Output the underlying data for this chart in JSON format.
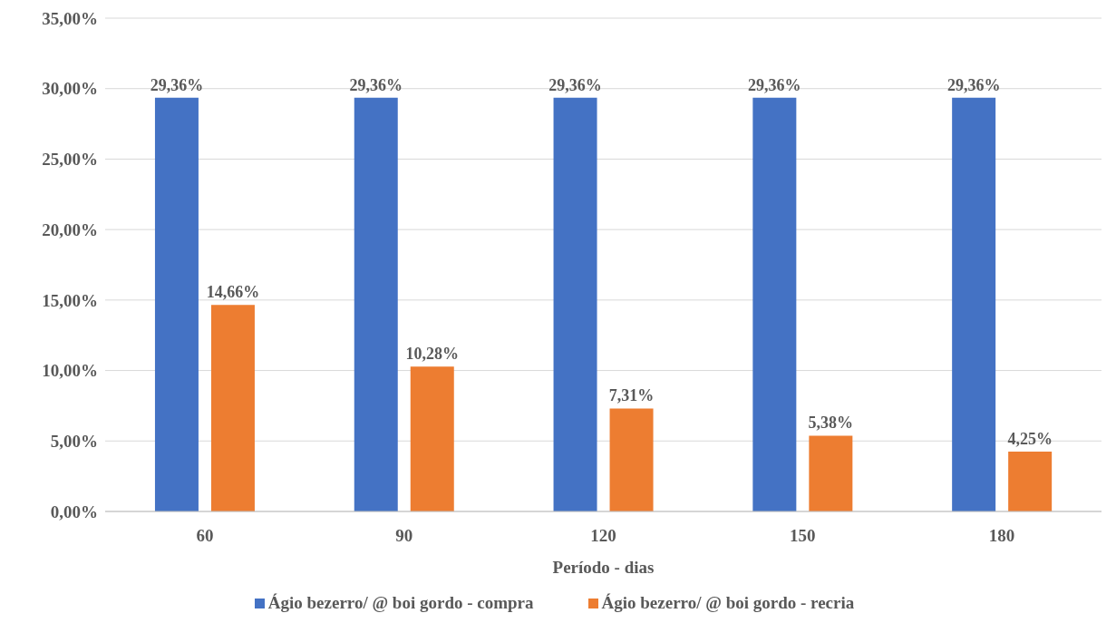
{
  "chart_data": {
    "type": "bar",
    "xlabel": "Período - dias",
    "categories": [
      "60",
      "90",
      "120",
      "150",
      "180"
    ],
    "series": [
      {
        "name": "Ágio bezerro/ @ boi gordo - compra",
        "color": "#4472c4",
        "values": [
          29.36,
          29.36,
          29.36,
          29.36,
          29.36
        ],
        "value_labels": [
          "29,36%",
          "29,36%",
          "29,36%",
          "29,36%",
          "29,36%"
        ]
      },
      {
        "name": "Ágio bezerro/ @ boi gordo - recria",
        "color": "#ed7d31",
        "values": [
          14.66,
          10.28,
          7.31,
          5.38,
          4.25
        ],
        "value_labels": [
          "14,66%",
          "10,28%",
          "7,31%",
          "5,38%",
          "4,25%"
        ]
      }
    ],
    "ylim": [
      0,
      35
    ],
    "yticks": [
      {
        "value": 0,
        "label": "0,00%"
      },
      {
        "value": 5,
        "label": "5,00%"
      },
      {
        "value": 10,
        "label": "10,00%"
      },
      {
        "value": 15,
        "label": "15,00%"
      },
      {
        "value": 20,
        "label": "20,00%"
      },
      {
        "value": 25,
        "label": "25,00%"
      },
      {
        "value": 30,
        "label": "30,00%"
      },
      {
        "value": 35,
        "label": "35,00%"
      }
    ],
    "grid": "y",
    "legend": "bottom"
  }
}
